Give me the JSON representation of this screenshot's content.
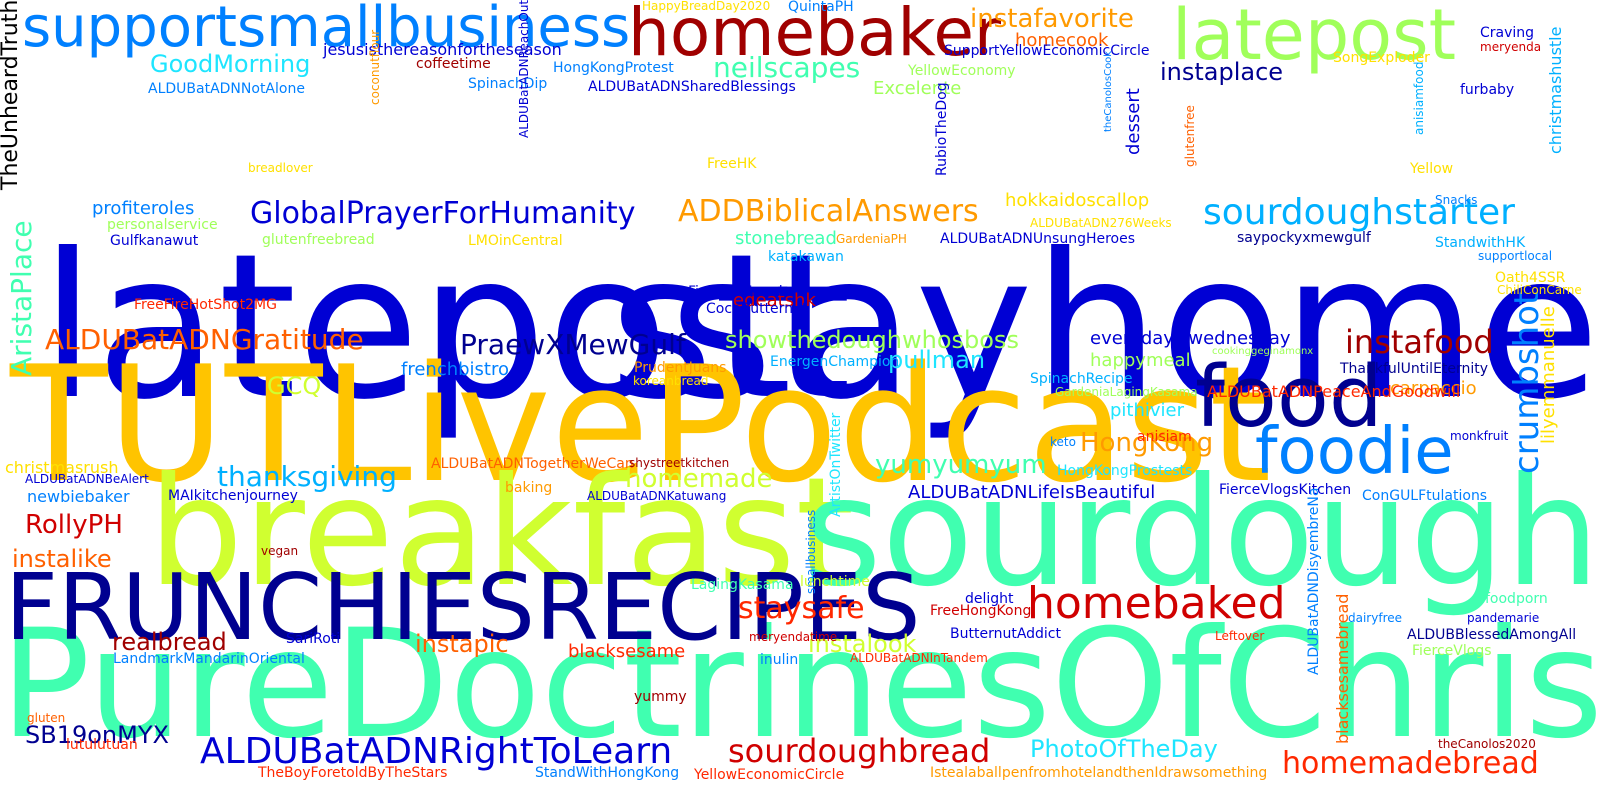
{
  "colors": {
    "background": "#ffffff",
    "palette": [
      "#0000d4",
      "#0080ff",
      "#00b0ff",
      "#1ee5ff",
      "#40ffb0",
      "#a0ff5a",
      "#d0ff30",
      "#ffe000",
      "#ffc400",
      "#ff9a00",
      "#ff6000",
      "#ff2800",
      "#d00000",
      "#a00000",
      "#000090"
    ]
  },
  "words": [
    "TheUnheardTruth",
    "latepost",
    "stayhome",
    "TUTLivePodcast",
    "breakfast",
    "sourdough",
    "PureDoctrinesOfChrist",
    "FRUNCHIESRECIPES",
    "supportsmallbusiness",
    "homebaker",
    "latepost",
    "food",
    "foodie",
    "homebaked",
    "sourdoughstarter",
    "GlobalPrayerForHumanity",
    "ADDBiblicalAnswers",
    "ALDUBatADNRightToLearn",
    "sourdoughbread",
    "homemadebread",
    "instafood",
    "crumbshot",
    "ALDUBatADNGratitude",
    "PraewXMewGulf",
    "staysafe",
    "instafavorite",
    "neilscapes",
    "instaplace",
    "GoodMorning",
    "AristaPlace",
    "yumyumyum",
    "thanksgiving",
    "homemade",
    "HongKong",
    "RollyPH",
    "SB19onMYX",
    "showthedoughwhosboss",
    "instalike",
    "realbread",
    "instapic",
    "instalook",
    "PhotoOfTheDay",
    "everydayiswednesday",
    "pullman",
    "lilyemmanuelle",
    "christmashustle",
    "hokkaidoscallop",
    "profiteroles",
    "jesusisthereasonfortheseason",
    "GCQ",
    "dessert",
    "carpaccio",
    "pithivier",
    "happymeal",
    "stonebread",
    "ALDUBatADNLifeIsBeautiful",
    "ALDUBatADNPeaceAndGoodwill",
    "frenchbistro",
    "edeatshk",
    "blacksesame",
    "homecook",
    "Excelente",
    "christmasrush",
    "newbiebaker",
    "MAIkitchenjourney",
    "HappyBreadDay2020",
    "QuintaPH",
    "SupportYellowEconomicCircle",
    "coffeetime",
    "HongKongProtest",
    "YellowEconomy",
    "SongExploder",
    "Craving",
    "meryenda",
    "ALDUBatADNNotAlone",
    "SpinachDip",
    "ALDUBatADNSharedBlessings",
    "furbaby",
    "coconutflour",
    "ALDUBatADNReachOut",
    "RubioTheDog",
    "theCanolosCook",
    "anisiamfood",
    "breadlover",
    "FreeHK",
    "Yellow",
    "Snacks",
    "glutenfree",
    "personalservice",
    "Gulfkanawut",
    "glutenfreebread",
    "LMOinCentral",
    "GardeniaPH",
    "ALDUBatADN276Weeks",
    "ALDUBatADNUnsungHeroes",
    "saypockyxmewgulf",
    "StandwithHK",
    "supportlocal",
    "katakawan",
    "Oath4SSR",
    "ChiliConCarne",
    "FightForFreedom",
    "CocoButternut",
    "FreeFireHotShot2MG",
    "EnergenChampion",
    "cookinggeginamonx",
    "PrudentJuans",
    "koreanbread",
    "SpinachRecipe",
    "GardeniaLagingKasama",
    "ThankfulUntilEternity",
    "keto",
    "anisiam",
    "monkfruit",
    "ALDUBatADNTogetherWeCan",
    "shystreetkitchen",
    "HongKongProstests",
    "ALDUBatADNBeAlert",
    "baking",
    "ALDUBatADNKatuwang",
    "FierceVlogsKitchen",
    "ConGULFtulations",
    "ArtistOnTwitter",
    "vegan",
    "smallbusiness",
    "ALDUBatADNDisyembreNa",
    "LagingKasama",
    "lunchtime",
    "foodporn",
    "delight",
    "FreeHongKong",
    "pandemarie",
    "dairyfree",
    "SariRoti",
    "ButternutAddict",
    "ALDUBBlessedAmongAll",
    "blacksesamebread",
    "LandmarkMandarinOriental",
    "meryendatime",
    "inulin",
    "ALDUBatADNInTandem",
    "Leftover",
    "FierceVlogs",
    "gluten",
    "yummy",
    "lutulutuan",
    "theCanolos2020",
    "TheBoyForetoldByTheStars",
    "StandWithHongKong",
    "YellowEconomicCircle",
    "IstealaballpenfromhotelandthenIdrawsomething"
  ]
}
